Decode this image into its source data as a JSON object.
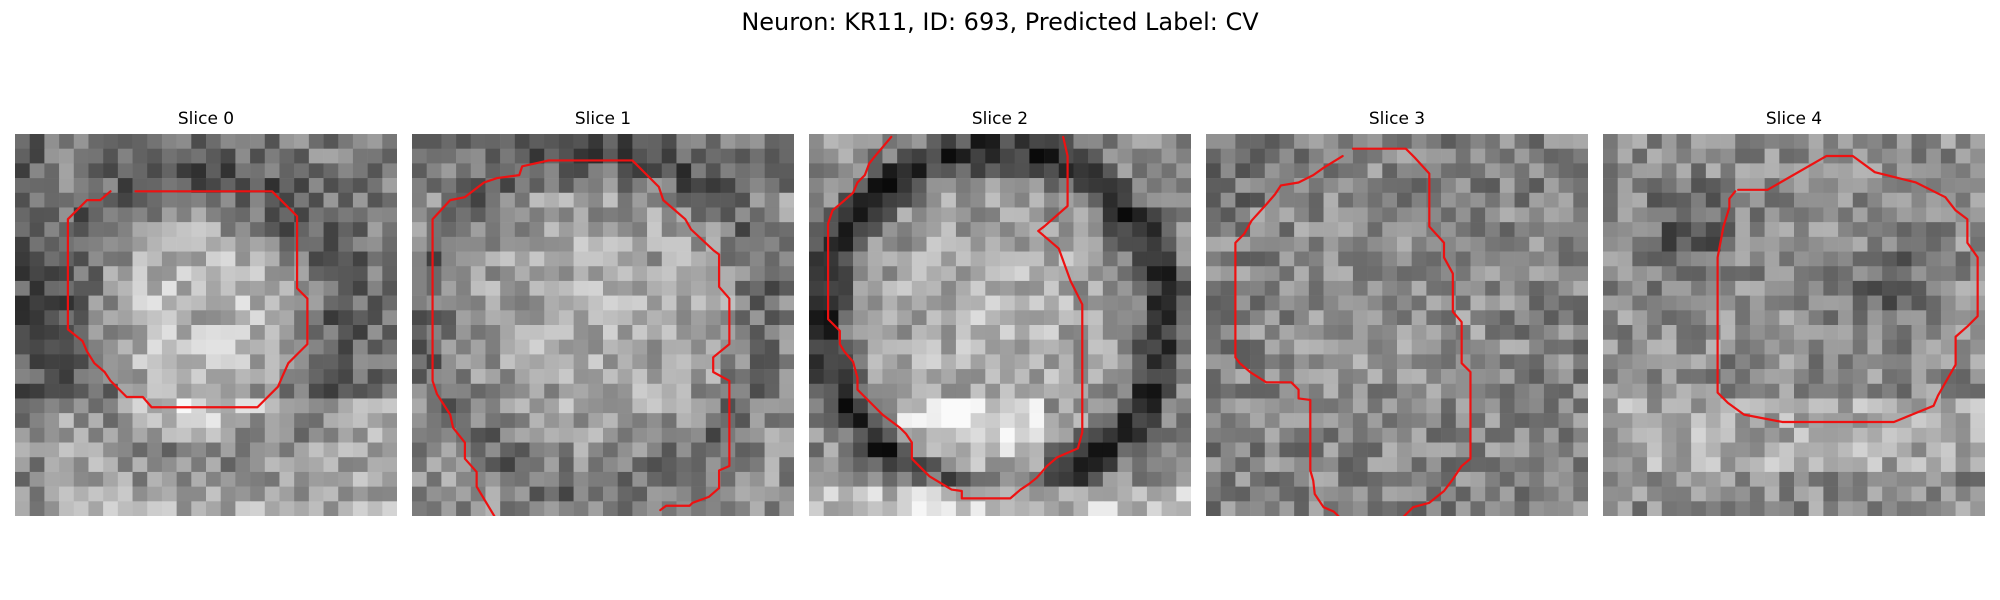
{
  "figure": {
    "suptitle": "Neuron: KR11, ID: 693, Predicted Label: CV"
  },
  "colors": {
    "contour": "#ee1111",
    "colormap": "gray"
  },
  "panels": [
    {
      "title": "Slice 0",
      "background": "grayscale noise image with bright soma region inside contour, darker ring around it",
      "contour_points": [
        [
          8.2,
          3.9
        ],
        [
          17.5,
          3.9
        ],
        [
          19.2,
          5.6
        ],
        [
          19.2,
          10.5
        ],
        [
          19.9,
          11.2
        ],
        [
          19.9,
          14.3
        ],
        [
          19.2,
          15.0
        ],
        [
          18.6,
          15.6
        ],
        [
          18.2,
          16.5
        ],
        [
          17.9,
          17.2
        ],
        [
          16.5,
          18.6
        ],
        [
          9.3,
          18.6
        ],
        [
          8.7,
          17.9
        ],
        [
          7.6,
          17.9
        ],
        [
          6.5,
          16.8
        ],
        [
          6.1,
          16.2
        ],
        [
          5.4,
          15.6
        ],
        [
          4.9,
          14.8
        ],
        [
          4.6,
          14.1
        ],
        [
          3.6,
          13.3
        ],
        [
          3.6,
          5.8
        ],
        [
          4.9,
          4.5
        ],
        [
          5.8,
          4.5
        ],
        [
          6.5,
          3.9
        ]
      ]
    },
    {
      "title": "Slice 1",
      "background": "grayscale noise image with bright cell body, dark boundary",
      "contour_points": [
        [
          5.6,
          26.0
        ],
        [
          5.0,
          25.0
        ],
        [
          4.4,
          24.0
        ],
        [
          4.4,
          23.0
        ],
        [
          3.6,
          22.1
        ],
        [
          3.6,
          21.0
        ],
        [
          2.8,
          20.0
        ],
        [
          2.6,
          19.1
        ],
        [
          1.7,
          17.7
        ],
        [
          1.4,
          16.8
        ],
        [
          1.4,
          5.8
        ],
        [
          2.6,
          4.5
        ],
        [
          3.6,
          4.3
        ],
        [
          4.9,
          3.3
        ],
        [
          5.8,
          3.0
        ],
        [
          7.3,
          2.8
        ],
        [
          7.5,
          2.2
        ],
        [
          9.3,
          1.8
        ],
        [
          15.0,
          1.8
        ],
        [
          16.8,
          3.6
        ],
        [
          17.1,
          4.5
        ],
        [
          18.6,
          5.8
        ],
        [
          19.0,
          6.5
        ],
        [
          20.5,
          7.9
        ],
        [
          20.9,
          8.2
        ],
        [
          20.9,
          10.4
        ],
        [
          21.6,
          11.2
        ],
        [
          21.6,
          14.3
        ],
        [
          20.5,
          15.2
        ],
        [
          20.5,
          16.2
        ],
        [
          21.6,
          16.8
        ],
        [
          21.6,
          22.6
        ],
        [
          20.9,
          22.9
        ],
        [
          20.9,
          24.1
        ],
        [
          20.2,
          24.7
        ],
        [
          19.1,
          25.1
        ],
        [
          18.9,
          25.3
        ],
        [
          17.3,
          25.3
        ],
        [
          16.9,
          25.6
        ]
      ]
    },
    {
      "title": "Slice 2",
      "background": "grayscale image of a large bright cell body with a thick dark rim",
      "contour_points": [
        [
          5.6,
          0.2
        ],
        [
          4.5,
          1.5
        ],
        [
          4.1,
          2.0
        ],
        [
          3.8,
          2.8
        ],
        [
          3.3,
          3.3
        ],
        [
          3.0,
          4.0
        ],
        [
          2.2,
          4.7
        ],
        [
          1.6,
          5.2
        ],
        [
          1.3,
          6.1
        ],
        [
          1.3,
          12.6
        ],
        [
          2.1,
          13.4
        ],
        [
          2.1,
          14.3
        ],
        [
          2.4,
          14.8
        ],
        [
          3.0,
          15.5
        ],
        [
          3.3,
          16.6
        ],
        [
          3.3,
          17.4
        ],
        [
          4.5,
          18.6
        ],
        [
          5.0,
          19.1
        ],
        [
          6.2,
          20.0
        ],
        [
          6.6,
          20.4
        ],
        [
          7.0,
          21.0
        ],
        [
          7.0,
          22.1
        ],
        [
          8.2,
          23.3
        ],
        [
          9.7,
          24.2
        ],
        [
          10.4,
          24.3
        ],
        [
          10.4,
          24.8
        ],
        [
          13.7,
          24.8
        ],
        [
          14.4,
          24.2
        ],
        [
          15.0,
          23.8
        ],
        [
          15.5,
          23.4
        ],
        [
          16.2,
          22.6
        ],
        [
          16.9,
          22.0
        ],
        [
          18.3,
          21.4
        ],
        [
          18.6,
          20.3
        ],
        [
          18.6,
          11.6
        ],
        [
          17.8,
          10.0
        ],
        [
          17.0,
          7.8
        ],
        [
          15.6,
          6.6
        ],
        [
          16.0,
          6.3
        ],
        [
          17.6,
          4.9
        ],
        [
          17.6,
          1.5
        ],
        [
          17.3,
          0.2
        ]
      ]
    },
    {
      "title": "Slice 3",
      "background": "grayscale noisy image with irregular bright cell region outlined",
      "contour_points": [
        [
          10.0,
          1.0
        ],
        [
          13.6,
          1.0
        ],
        [
          14.2,
          1.6
        ],
        [
          15.2,
          2.7
        ],
        [
          15.2,
          6.3
        ],
        [
          16.2,
          7.4
        ],
        [
          16.2,
          8.4
        ],
        [
          16.8,
          9.5
        ],
        [
          16.8,
          12.1
        ],
        [
          17.4,
          12.8
        ],
        [
          17.4,
          15.6
        ],
        [
          18.0,
          16.2
        ],
        [
          18.0,
          22.1
        ],
        [
          17.4,
          22.6
        ],
        [
          16.8,
          23.5
        ],
        [
          16.2,
          24.3
        ],
        [
          15.2,
          25.1
        ],
        [
          14.1,
          25.4
        ],
        [
          13.3,
          26.2
        ],
        [
          9.2,
          26.2
        ],
        [
          8.7,
          25.7
        ],
        [
          8.0,
          25.4
        ],
        [
          7.4,
          24.5
        ],
        [
          7.3,
          23.6
        ],
        [
          7.1,
          22.9
        ],
        [
          7.1,
          18.1
        ],
        [
          6.3,
          18.0
        ],
        [
          6.3,
          17.4
        ],
        [
          5.8,
          16.9
        ],
        [
          4.1,
          16.9
        ],
        [
          3.0,
          16.2
        ],
        [
          2.3,
          15.6
        ],
        [
          2.0,
          15.2
        ],
        [
          2.0,
          7.4
        ],
        [
          2.6,
          6.8
        ],
        [
          3.1,
          5.9
        ],
        [
          4.1,
          4.8
        ],
        [
          4.7,
          4.1
        ],
        [
          5.1,
          3.5
        ],
        [
          6.3,
          3.3
        ],
        [
          7.3,
          2.8
        ],
        [
          8.0,
          2.3
        ],
        [
          9.3,
          1.5
        ]
      ]
    },
    {
      "title": "Slice 4",
      "background": "grayscale noisy image with dark patches and a rounded contour",
      "contour_points": [
        [
          9.2,
          3.8
        ],
        [
          11.2,
          3.8
        ],
        [
          15.2,
          1.5
        ],
        [
          17.0,
          1.5
        ],
        [
          18.5,
          2.6
        ],
        [
          21.3,
          3.3
        ],
        [
          23.3,
          4.3
        ],
        [
          24.0,
          5.2
        ],
        [
          24.8,
          5.8
        ],
        [
          24.8,
          7.4
        ],
        [
          25.5,
          8.4
        ],
        [
          25.5,
          12.4
        ],
        [
          24.8,
          13.1
        ],
        [
          24.0,
          13.8
        ],
        [
          24.0,
          15.7
        ],
        [
          23.6,
          16.4
        ],
        [
          23.2,
          17.1
        ],
        [
          22.8,
          17.8
        ],
        [
          22.5,
          18.5
        ],
        [
          19.8,
          19.6
        ],
        [
          14.5,
          19.6
        ],
        [
          12.2,
          19.6
        ],
        [
          9.6,
          19.1
        ],
        [
          8.5,
          18.3
        ],
        [
          7.8,
          17.6
        ],
        [
          7.8,
          12.0
        ],
        [
          7.8,
          8.4
        ],
        [
          8.2,
          6.3
        ],
        [
          8.6,
          5.0
        ],
        [
          8.6,
          4.4
        ],
        [
          9.0,
          3.9
        ]
      ]
    }
  ]
}
